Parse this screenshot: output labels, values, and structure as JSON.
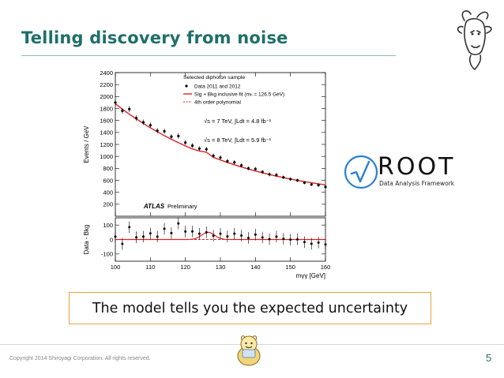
{
  "slide": {
    "title": "Telling discovery from noise",
    "callout": "The model tells you the expected uncertainty",
    "copyright": "Copyright 2014 Shiroyagi Corporation. All rights reserved.",
    "page_number": "5"
  },
  "root_logo": {
    "word": "ROOT",
    "subtitle": "Data Analysis Framework"
  },
  "colors": {
    "title": "#1f6f6a",
    "callout_border": "#e8a33c",
    "fit_line": "#e02020"
  },
  "icons": [
    "goat-logo-icon",
    "root-checkmark-icon",
    "mascot-icon"
  ],
  "chart_data": {
    "type": "scatter",
    "upper": {
      "ylabel": "Events / GeV",
      "ylim": [
        0,
        2400
      ],
      "yticks": [
        200,
        400,
        600,
        800,
        1000,
        1200,
        1400,
        1600,
        1800,
        2000,
        2200,
        2400
      ],
      "legend": {
        "header": "Selected diphoton sample",
        "entries": [
          "Data 2011 and 2012",
          "Sig + Bkg inclusive fit (mₕ = 126.5 GeV)",
          "4th order polynomial"
        ],
        "lumi_7": "√s = 7 TeV, ∫Ldt = 4.8 fb⁻¹",
        "lumi_8": "√s = 8 TeV, ∫Ldt = 5.9 fb⁻¹",
        "placement": "top-right"
      },
      "atlas_label": "ATLAS",
      "atlas_status": "Preliminary",
      "x": [
        100,
        102,
        104,
        106,
        108,
        110,
        112,
        114,
        116,
        118,
        120,
        122,
        124,
        126,
        128,
        130,
        132,
        134,
        136,
        138,
        140,
        142,
        144,
        146,
        148,
        150,
        152,
        154,
        156,
        158,
        160
      ],
      "data": [
        1900,
        1760,
        1790,
        1640,
        1570,
        1520,
        1430,
        1420,
        1330,
        1340,
        1230,
        1180,
        1130,
        1120,
        1010,
        980,
        920,
        900,
        850,
        800,
        790,
        740,
        700,
        690,
        650,
        620,
        600,
        560,
        530,
        520,
        490
      ],
      "fit": [
        1880,
        1790,
        1705,
        1625,
        1550,
        1478,
        1410,
        1346,
        1286,
        1229,
        1175,
        1124,
        1090,
        1070,
        984,
        940,
        899,
        860,
        823,
        789,
        756,
        726,
        697,
        670,
        645,
        621,
        599,
        578,
        559,
        541,
        524
      ]
    },
    "lower": {
      "ylabel": "Data - Bkg",
      "ylim": [
        -150,
        150
      ],
      "yticks": [
        -100,
        0,
        100
      ],
      "x": [
        100,
        102,
        104,
        106,
        108,
        110,
        112,
        114,
        116,
        118,
        120,
        122,
        124,
        126,
        128,
        130,
        132,
        134,
        136,
        138,
        140,
        142,
        144,
        146,
        148,
        150,
        152,
        154,
        156,
        158,
        160
      ],
      "residual": [
        20,
        -30,
        85,
        15,
        20,
        42,
        20,
        74,
        44,
        111,
        55,
        56,
        40,
        50,
        26,
        40,
        21,
        40,
        27,
        11,
        34,
        14,
        3,
        20,
        5,
        -1,
        1,
        -18,
        -29,
        -21,
        -34
      ],
      "signal_peak_center": 126.5,
      "signal_peak_height": 50
    },
    "xlabel": "mγγ [GeV]",
    "xlim": [
      100,
      160
    ],
    "xticks": [
      100,
      110,
      120,
      130,
      140,
      150,
      160
    ]
  }
}
